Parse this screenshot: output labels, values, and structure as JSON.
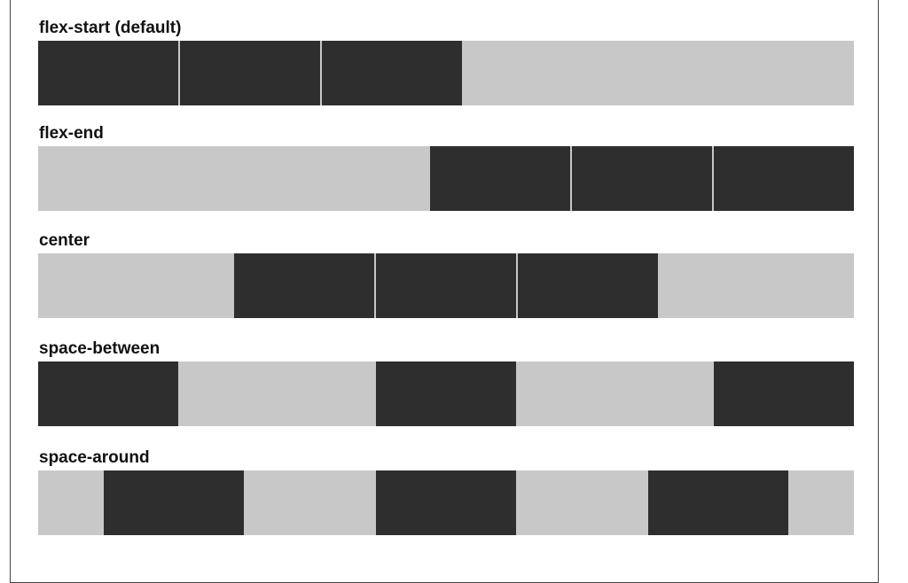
{
  "colors": {
    "container": "#c8c8c8",
    "item": "#2e2e2e",
    "background": "#ffffff",
    "border": "#444444"
  },
  "sections": [
    {
      "label": "flex-start (default)",
      "justify": "flex-start",
      "items": 3
    },
    {
      "label": "flex-end",
      "justify": "flex-end",
      "items": 3
    },
    {
      "label": "center",
      "justify": "center",
      "items": 3
    },
    {
      "label": "space-between",
      "justify": "space-between",
      "items": 3
    },
    {
      "label": "space-around",
      "justify": "space-around",
      "items": 3
    }
  ]
}
